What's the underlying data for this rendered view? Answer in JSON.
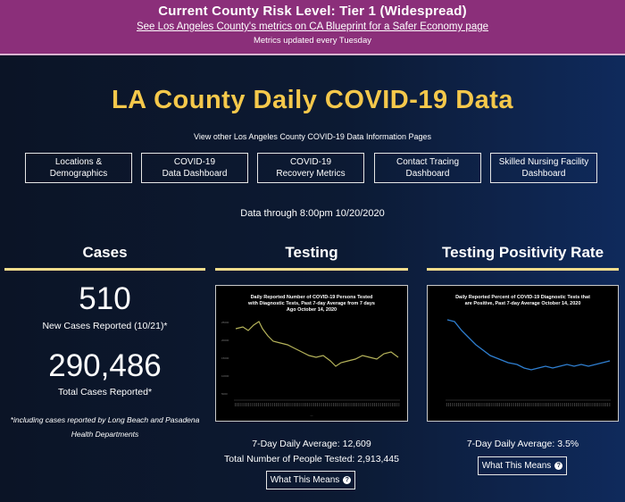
{
  "banner": {
    "risk_level": "Current County Risk Level: Tier 1 (Widespread)",
    "metrics_link": "See Los Angeles County's metrics on CA Blueprint for a Safer Economy page",
    "updated": "Metrics updated every Tuesday"
  },
  "page": {
    "title": "LA County Daily COVID-19 Data",
    "subtitle": "View other Los Angeles County COVID-19 Data Information Pages",
    "data_through": "Data through 8:00pm 10/20/2020"
  },
  "nav": [
    {
      "label": "Locations &\nDemographics"
    },
    {
      "label": "COVID-19\nData Dashboard"
    },
    {
      "label": "COVID-19\nRecovery Metrics"
    },
    {
      "label": "Contact Tracing\nDashboard"
    },
    {
      "label": "Skilled Nursing Facility\nDashboard"
    }
  ],
  "cases": {
    "heading": "Cases",
    "new_cases": "510",
    "new_cases_label": "New Cases Reported (10/21)*",
    "total_cases": "290,486",
    "total_cases_label": "Total Cases Reported*",
    "footnote": "*including cases reported by Long Beach and Pasadena Health Departments"
  },
  "testing": {
    "heading": "Testing",
    "chart_title": "Daily Reported Number of COVID-19 Persons Tested with Diagnostic Tests, Past 7-day Average from 7 days Ago October 14, 2020",
    "avg": "7-Day Daily Average: 12,609",
    "total": "Total Number of People Tested: 2,913,445",
    "button": "What This Means",
    "line_color": "#b5b35a"
  },
  "positivity": {
    "heading": "Testing Positivity Rate",
    "chart_title": "Daily Reported Percent of COVID-19 Diagnostic Tests that are Positive, Past 7-day Average October 14, 2020",
    "avg": "7-Day Daily Average: 3.5%",
    "button": "What This Means",
    "line_color": "#2f7fd1"
  },
  "colors": {
    "banner": "#8b2f7a",
    "title": "#f5c84b",
    "underline": "#f2dc8c"
  },
  "icons": {
    "help": "question-circle-icon"
  }
}
